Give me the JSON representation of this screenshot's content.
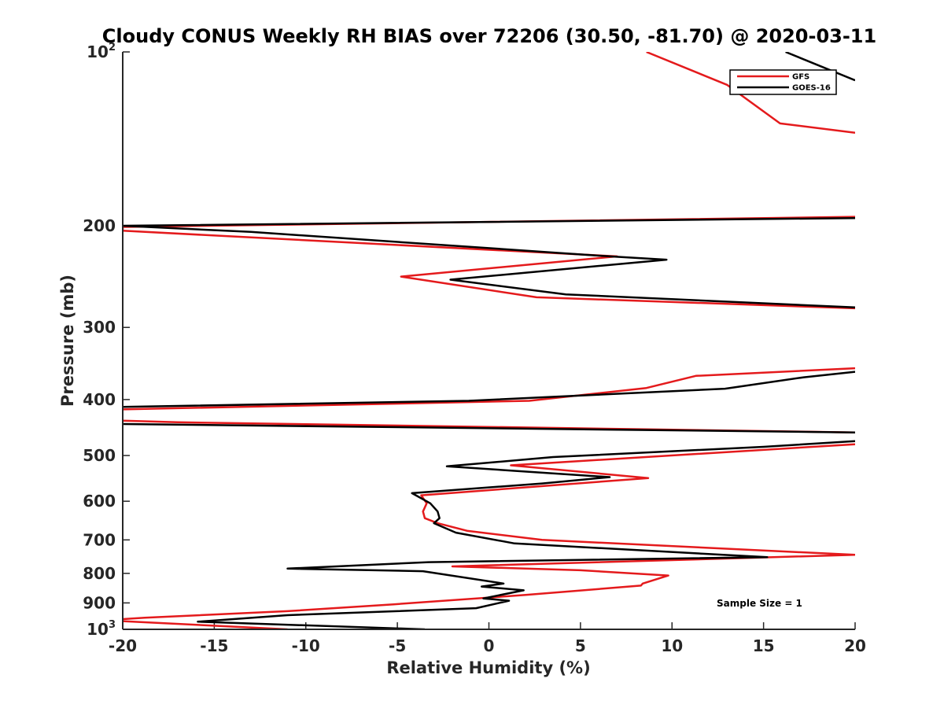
{
  "chart_data": {
    "type": "line",
    "title": "Cloudy CONUS Weekly RH BIAS over 72206 (30.50, -81.70) @ 2020-03-11",
    "xlabel": "Relative Humidity (%)",
    "ylabel": "Pressure (mb)",
    "xlim": [
      -20,
      20
    ],
    "ylim": [
      100,
      1000
    ],
    "yscale": "log",
    "y_reversed": true,
    "xticks": [
      -20,
      -15,
      -10,
      -5,
      0,
      5,
      10,
      15,
      20
    ],
    "yticks": [
      {
        "value": 100,
        "base": "10",
        "exp": "2"
      },
      {
        "value": 200,
        "label": "200"
      },
      {
        "value": 300,
        "label": "300"
      },
      {
        "value": 400,
        "label": "400"
      },
      {
        "value": 500,
        "label": "500"
      },
      {
        "value": 600,
        "label": "600"
      },
      {
        "value": 700,
        "label": "700"
      },
      {
        "value": 800,
        "label": "800"
      },
      {
        "value": 900,
        "label": "900"
      },
      {
        "value": 1000,
        "base": "10",
        "exp": "3"
      }
    ],
    "legend_position": "top-right",
    "annotation": "Sample Size = 1",
    "series": [
      {
        "name": "GFS",
        "color": "#e41a1c",
        "points": [
          [
            8.6,
            100
          ],
          [
            13,
            114
          ],
          [
            15.9,
            133
          ],
          [
            20,
            138
          ],
          null,
          [
            20,
            193
          ],
          [
            -20,
            201
          ],
          [
            -20,
            204
          ],
          [
            7,
            226
          ],
          [
            -4.8,
            245
          ],
          [
            2.6,
            266
          ],
          [
            20,
            278
          ],
          null,
          [
            20,
            353
          ],
          [
            11.3,
            364
          ],
          [
            8.6,
            382
          ],
          [
            2.2,
            402
          ],
          [
            -20,
            416
          ],
          null,
          [
            -20,
            435
          ],
          [
            -17,
            438
          ],
          [
            20,
            456
          ],
          null,
          [
            20,
            478
          ],
          [
            1.2,
            520
          ],
          [
            8.7,
            547
          ],
          [
            -3.7,
            586
          ],
          [
            -3.4,
            605
          ],
          [
            -3.6,
            625
          ],
          [
            -3.5,
            642
          ],
          [
            -2.8,
            655
          ],
          [
            -1.2,
            675
          ],
          [
            2.9,
            700
          ],
          [
            20,
            743
          ],
          [
            -2,
            778
          ],
          [
            5,
            790
          ],
          [
            9.8,
            807
          ],
          [
            8.4,
            833
          ],
          [
            8.3,
            840
          ],
          [
            2,
            872
          ],
          [
            -5.2,
            905
          ],
          [
            -11,
            930
          ],
          [
            -18.8,
            955
          ],
          [
            -20,
            960
          ],
          null,
          [
            -20,
            968
          ],
          [
            -11,
            1000
          ]
        ]
      },
      {
        "name": "GOES-16",
        "color": "#000000",
        "points": [
          [
            16.2,
            100
          ],
          [
            20,
            112
          ],
          null,
          [
            20,
            194
          ],
          [
            -20,
            200
          ],
          [
            -13,
            205
          ],
          [
            6.6,
            226
          ],
          [
            9.7,
            229
          ],
          [
            -2.1,
            248
          ],
          [
            4.2,
            263
          ],
          [
            20,
            277
          ],
          null,
          [
            20,
            358
          ],
          [
            17.2,
            366
          ],
          [
            12.9,
            383
          ],
          [
            -1.1,
            402
          ],
          [
            -20,
            412
          ],
          null,
          [
            -20,
            441
          ],
          [
            20,
            456
          ],
          null,
          [
            20,
            472
          ],
          [
            15,
            483
          ],
          [
            3.5,
            503
          ],
          [
            -2.3,
            522
          ],
          [
            6.6,
            545
          ],
          [
            2.9,
            559
          ],
          [
            -4.2,
            581
          ],
          [
            -3.2,
            605
          ],
          [
            -2.8,
            625
          ],
          [
            -2.7,
            642
          ],
          [
            -3,
            655
          ],
          [
            -1.8,
            680
          ],
          [
            1.4,
            710
          ],
          [
            15.2,
            750
          ],
          [
            -3.3,
            765
          ],
          [
            -11,
            785
          ],
          [
            -3.6,
            793
          ],
          [
            0.8,
            833
          ],
          [
            -0.4,
            843
          ],
          [
            1.9,
            856
          ],
          [
            -0.3,
            884
          ],
          [
            1.1,
            892
          ],
          [
            -0.7,
            919
          ],
          [
            -5,
            930
          ],
          [
            -11,
            945
          ],
          [
            -15.9,
            970
          ],
          [
            -3.5,
            1000
          ]
        ]
      }
    ]
  }
}
